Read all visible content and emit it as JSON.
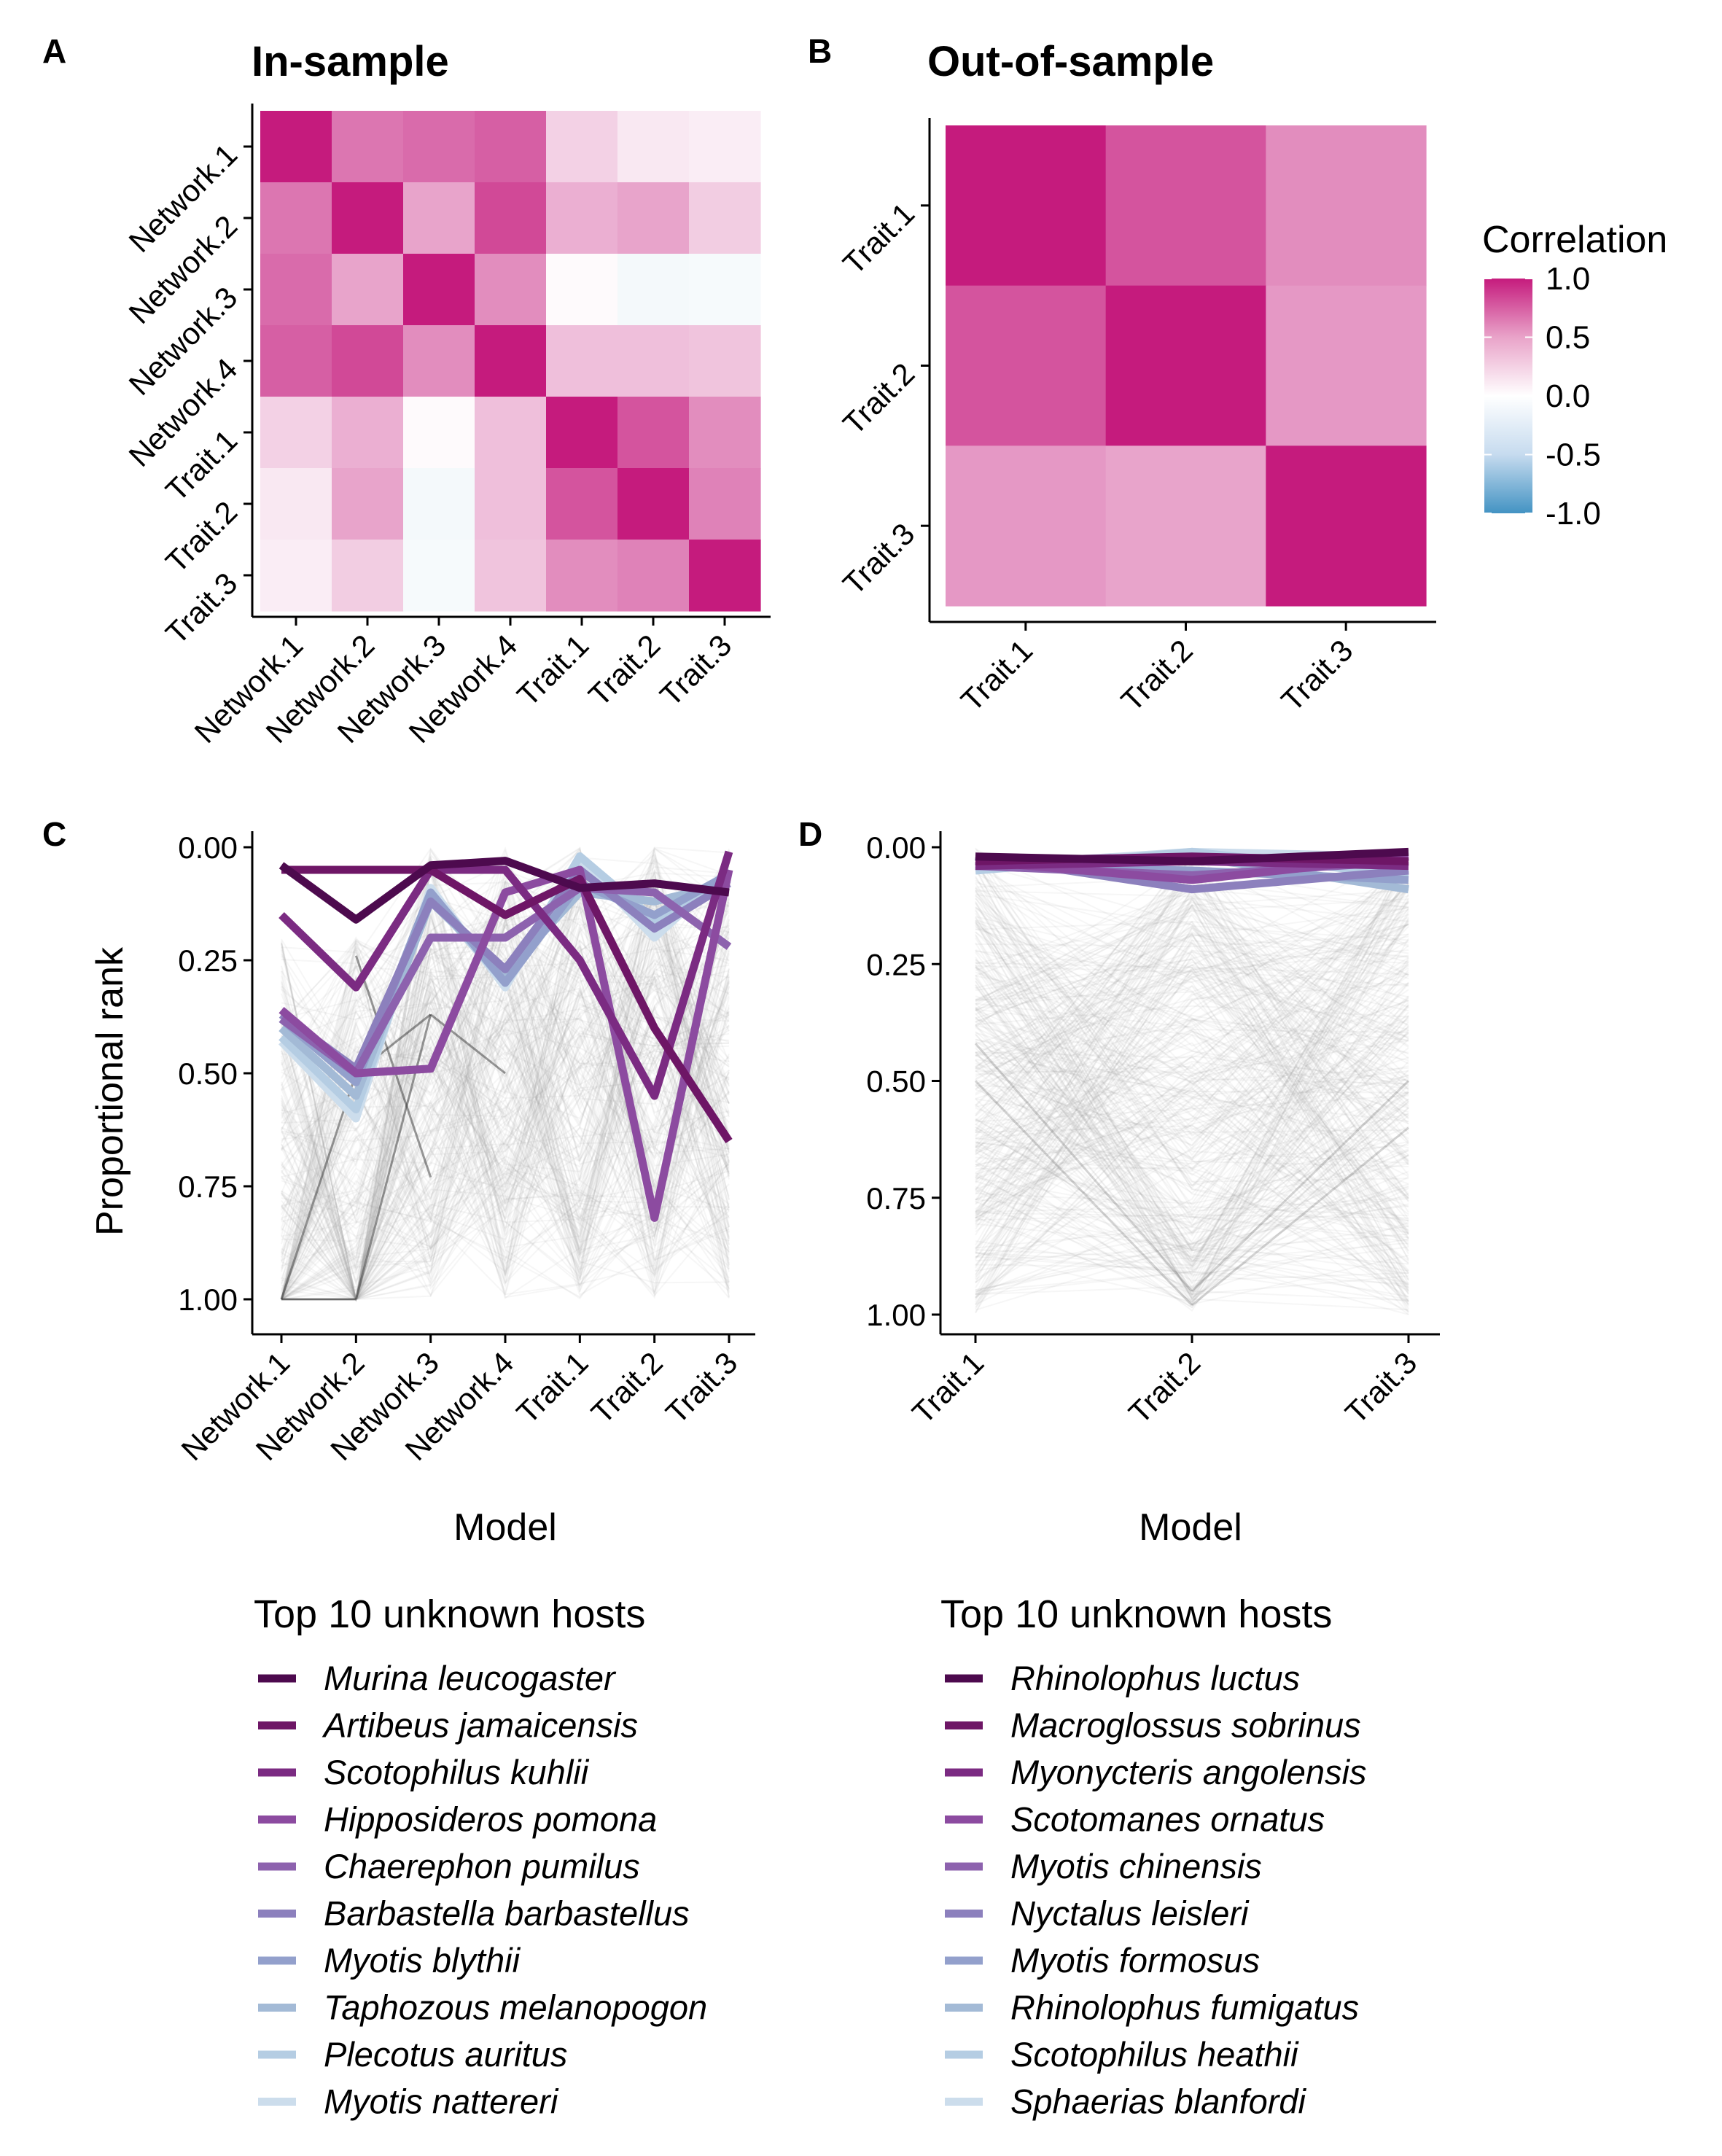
{
  "figure": {
    "colors": {
      "corr_high": "#C51B7D",
      "corr_mid": "#FFFFFF",
      "corr_low": "#4393C3",
      "background_lines": "#9A9A9A",
      "axis": "#000000"
    }
  },
  "panels": {
    "A": {
      "letter": "A",
      "title": "In-sample"
    },
    "B": {
      "letter": "B",
      "title": "Out-of-sample"
    },
    "C": {
      "letter": "C",
      "xlabel": "Model",
      "ylabel": "Proportional rank",
      "legend_title": "Top 10 unknown hosts"
    },
    "D": {
      "letter": "D",
      "xlabel": "Model",
      "legend_title": "Top 10 unknown hosts"
    }
  },
  "colorbar": {
    "title": "Correlation",
    "ticks": [
      "1.0",
      "0.5",
      "0.0",
      "-0.5",
      "-1.0"
    ],
    "tick_values": [
      1.0,
      0.5,
      0.0,
      -0.5,
      -1.0
    ],
    "range": [
      -1,
      1
    ]
  },
  "chart_data": [
    {
      "id": "A",
      "type": "heatmap",
      "title": "In-sample",
      "x_categories": [
        "Network.1",
        "Network.2",
        "Network.3",
        "Network.4",
        "Trait.1",
        "Trait.2",
        "Trait.3"
      ],
      "y_categories": [
        "Network.1",
        "Network.2",
        "Network.3",
        "Network.4",
        "Trait.1",
        "Trait.2",
        "Trait.3"
      ],
      "values": [
        [
          1.0,
          0.6,
          0.65,
          0.7,
          0.2,
          0.1,
          0.08
        ],
        [
          0.6,
          1.0,
          0.4,
          0.8,
          0.35,
          0.4,
          0.22
        ],
        [
          0.65,
          0.4,
          1.0,
          0.5,
          0.02,
          -0.06,
          -0.05
        ],
        [
          0.7,
          0.8,
          0.5,
          1.0,
          0.28,
          0.28,
          0.26
        ],
        [
          0.2,
          0.35,
          0.02,
          0.28,
          1.0,
          0.75,
          0.5
        ],
        [
          0.1,
          0.4,
          -0.06,
          0.28,
          0.75,
          1.0,
          0.55
        ],
        [
          0.08,
          0.22,
          -0.05,
          0.26,
          0.5,
          0.55,
          1.0
        ]
      ],
      "range": [
        -1,
        1
      ]
    },
    {
      "id": "B",
      "type": "heatmap",
      "title": "Out-of-sample",
      "x_categories": [
        "Trait.1",
        "Trait.2",
        "Trait.3"
      ],
      "y_categories": [
        "Trait.1",
        "Trait.2",
        "Trait.3"
      ],
      "values": [
        [
          1.0,
          0.75,
          0.5
        ],
        [
          0.75,
          1.0,
          0.45
        ],
        [
          0.45,
          0.4,
          1.0
        ]
      ],
      "range": [
        -1,
        1
      ]
    },
    {
      "id": "C",
      "type": "line",
      "xlabel": "Model",
      "ylabel": "Proportional rank",
      "categories": [
        "Network.1",
        "Network.2",
        "Network.3",
        "Network.4",
        "Trait.1",
        "Trait.2",
        "Trait.3"
      ],
      "y_ticks": [
        "0.00",
        "0.25",
        "0.50",
        "0.75",
        "1.00"
      ],
      "y_tick_values": [
        0.0,
        0.25,
        0.5,
        0.75,
        1.0
      ],
      "ylim": [
        0,
        1
      ],
      "y_reversed": true,
      "legend_title": "Top 10 unknown hosts",
      "background": "many faint grey lines, one per host species",
      "series": [
        {
          "name": "Murina leucogaster",
          "color": "#4D0A4E",
          "values": [
            0.04,
            0.16,
            0.04,
            0.03,
            0.09,
            0.08,
            0.1
          ]
        },
        {
          "name": "Artibeus jamaicensis",
          "color": "#6E1666",
          "values": [
            0.05,
            0.05,
            0.05,
            0.15,
            0.07,
            0.4,
            0.65
          ]
        },
        {
          "name": "Scotophilus kuhlii",
          "color": "#7B2B82",
          "values": [
            0.15,
            0.31,
            0.05,
            0.05,
            0.25,
            0.55,
            0.01
          ]
        },
        {
          "name": "Hipposideros pomona",
          "color": "#8C4BA0",
          "values": [
            0.36,
            0.5,
            0.49,
            0.1,
            0.05,
            0.82,
            0.05
          ]
        },
        {
          "name": "Chaerephon pumilus",
          "color": "#8D62AE",
          "values": [
            0.38,
            0.5,
            0.2,
            0.2,
            0.09,
            0.1,
            0.22
          ]
        },
        {
          "name": "Barbastella barbastellus",
          "color": "#8C80BD",
          "values": [
            0.37,
            0.49,
            0.12,
            0.27,
            0.05,
            0.18,
            0.08
          ]
        },
        {
          "name": "Myotis blythii",
          "color": "#93A0CC",
          "values": [
            0.38,
            0.52,
            0.1,
            0.3,
            0.08,
            0.15,
            0.06
          ]
        },
        {
          "name": "Taphozous melanopogon",
          "color": "#A3BAD6",
          "values": [
            0.4,
            0.55,
            0.12,
            0.28,
            0.1,
            0.12,
            0.08
          ]
        },
        {
          "name": "Plecotus auritus",
          "color": "#B5CDE3",
          "values": [
            0.42,
            0.58,
            0.11,
            0.3,
            0.02,
            0.16,
            0.07
          ]
        },
        {
          "name": "Myotis nattereri",
          "color": "#CCDDEC",
          "values": [
            0.43,
            0.6,
            0.09,
            0.31,
            0.03,
            0.2,
            0.05
          ]
        }
      ]
    },
    {
      "id": "D",
      "type": "line",
      "xlabel": "Model",
      "categories": [
        "Trait.1",
        "Trait.2",
        "Trait.3"
      ],
      "y_ticks": [
        "0.00",
        "0.25",
        "0.50",
        "0.75",
        "1.00"
      ],
      "y_tick_values": [
        0.0,
        0.25,
        0.5,
        0.75,
        1.0
      ],
      "ylim": [
        0,
        1
      ],
      "y_reversed": true,
      "legend_title": "Top 10 unknown hosts",
      "background": "many faint grey lines, one per host species",
      "series": [
        {
          "name": "Rhinolophus luctus",
          "color": "#4D0A4E",
          "values": [
            0.02,
            0.03,
            0.01
          ]
        },
        {
          "name": "Macroglossus sobrinus",
          "color": "#6E1666",
          "values": [
            0.03,
            0.02,
            0.03
          ]
        },
        {
          "name": "Myonycteris angolensis",
          "color": "#7B2B82",
          "values": [
            0.04,
            0.03,
            0.04
          ]
        },
        {
          "name": "Scotomanes ornatus",
          "color": "#8C4BA0",
          "values": [
            0.03,
            0.07,
            0.02
          ]
        },
        {
          "name": "Myotis chinensis",
          "color": "#8D62AE",
          "values": [
            0.04,
            0.06,
            0.03
          ]
        },
        {
          "name": "Nyctalus leisleri",
          "color": "#8C80BD",
          "values": [
            0.02,
            0.09,
            0.05
          ]
        },
        {
          "name": "Myotis formosus",
          "color": "#93A0CC",
          "values": [
            0.04,
            0.05,
            0.07
          ]
        },
        {
          "name": "Rhinolophus fumigatus",
          "color": "#A3BAD6",
          "values": [
            0.03,
            0.02,
            0.09
          ]
        },
        {
          "name": "Scotophilus heathii",
          "color": "#B5CDE3",
          "values": [
            0.05,
            0.01,
            0.06
          ]
        },
        {
          "name": "Sphaerias blanfordi",
          "color": "#CCDDEC",
          "values": [
            0.04,
            0.01,
            0.02
          ]
        }
      ]
    }
  ]
}
